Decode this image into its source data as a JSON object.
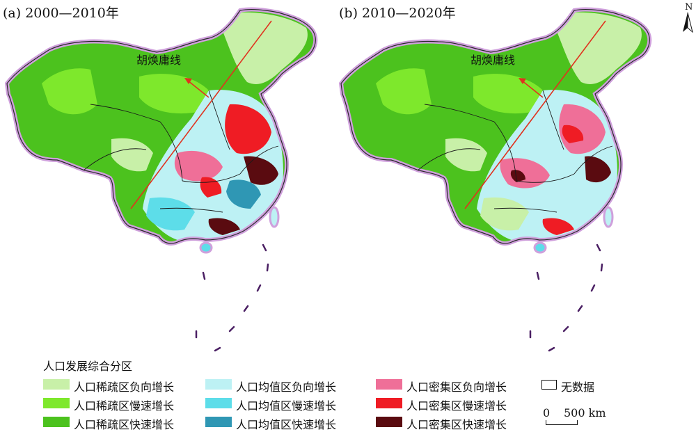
{
  "panels": [
    {
      "id": "a",
      "title": "(a) 2000—2010年",
      "hu_line_label": "胡焕庸线"
    },
    {
      "id": "b",
      "title": "(b) 2010—2020年",
      "hu_line_label": "胡焕庸线"
    }
  ],
  "north_label": "N",
  "legend": {
    "title": "人口发展综合分区",
    "items": [
      {
        "label": "人口稀疏区负向增长",
        "color": "#c8f0a8"
      },
      {
        "label": "人口稀疏区慢速增长",
        "color": "#7ee82c"
      },
      {
        "label": "人口稀疏区快速增长",
        "color": "#4cc21e"
      },
      {
        "label": "人口均值区负向增长",
        "color": "#bdf1f4"
      },
      {
        "label": "人口均值区慢速增长",
        "color": "#5ddde9"
      },
      {
        "label": "人口均值区快速增长",
        "color": "#2f97b4"
      },
      {
        "label": "人口密集区负向增长",
        "color": "#ef6f98"
      },
      {
        "label": "人口密集区慢速增长",
        "color": "#ef1c24"
      },
      {
        "label": "人口密集区快速增长",
        "color": "#5a0b10"
      },
      {
        "label": "无数据",
        "color": "#ffffff"
      }
    ]
  },
  "scale_bar": {
    "start": "0",
    "end": "500 km"
  },
  "colors": {
    "boundary_halo": "#cfa0dc",
    "hu_line": "#e0321e",
    "province_lines": "#1a1a1a"
  }
}
